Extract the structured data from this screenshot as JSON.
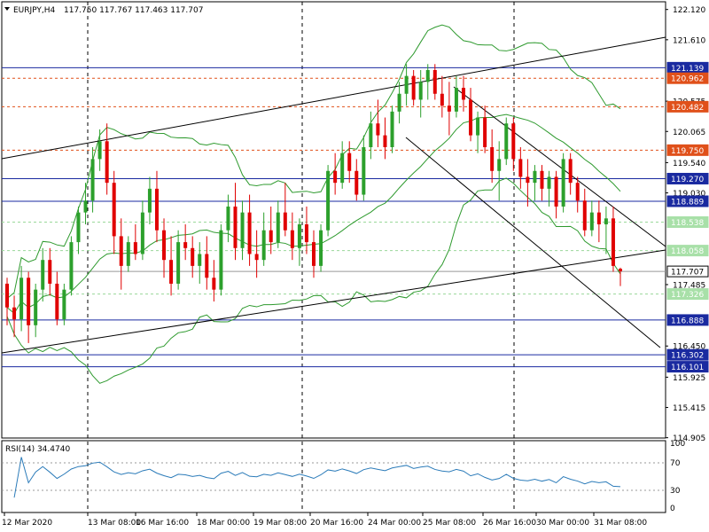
{
  "header": {
    "symbol": "EURJPY,H4",
    "ohlc": "117.750 117.767 117.463 117.707"
  },
  "rsi_panel": {
    "label": "RSI(14) 34.4740",
    "levels": [
      70,
      30
    ],
    "scale_labels": [
      "100",
      "70",
      "30",
      "0"
    ]
  },
  "colors": {
    "bull": "#2ca02c",
    "bear": "#e00000",
    "band": "#2e9a2e",
    "blue_line": "#1a2aa0",
    "orange_line": "#e0501a",
    "green_line": "#66cc66",
    "trend": "#000000"
  },
  "chart_data": {
    "type": "candlestick",
    "ylim": [
      114.9,
      122.25
    ],
    "price_scale": [
      "122.120",
      "121.610",
      "121.139",
      "120.962",
      "120.575",
      "120.482",
      "120.065",
      "119.750",
      "119.540",
      "119.270",
      "119.030",
      "118.889",
      "118.538",
      "118.058",
      "117.707",
      "117.485",
      "117.326",
      "116.888",
      "116.450",
      "116.302",
      "116.101",
      "115.925",
      "115.415",
      "114.905"
    ],
    "x_ticks": [
      "12 Mar 2020",
      "13 Mar 08:00",
      "16 Mar 16:00",
      "18 Mar 00:00",
      "19 Mar 08:00",
      "20 Mar 16:00",
      "24 Mar 00:00",
      "25 Mar 08:00",
      "26 Mar 16:00",
      "30 Mar 00:00",
      "31 Mar 08:00"
    ],
    "horizontal_levels": [
      {
        "value": 121.139,
        "label": "121.139",
        "kind": "blue"
      },
      {
        "value": 120.962,
        "label": "120.962",
        "kind": "orange"
      },
      {
        "value": 120.482,
        "label": "120.482",
        "kind": "orange"
      },
      {
        "value": 119.75,
        "label": "119.750",
        "kind": "orange"
      },
      {
        "value": 119.27,
        "label": "119.270",
        "kind": "blue"
      },
      {
        "value": 118.889,
        "label": "118.889",
        "kind": "blue"
      },
      {
        "value": 118.538,
        "label": "118.538",
        "kind": "green"
      },
      {
        "value": 118.058,
        "label": "118.058",
        "kind": "green"
      },
      {
        "value": 117.707,
        "label": "117.707",
        "kind": "current"
      },
      {
        "value": 117.326,
        "label": "117.326",
        "kind": "green"
      },
      {
        "value": 116.888,
        "label": "116.888",
        "kind": "blue"
      },
      {
        "value": 116.302,
        "label": "116.302",
        "kind": "blue"
      },
      {
        "value": 116.101,
        "label": "116.101",
        "kind": "blue"
      }
    ],
    "candles": [
      [
        117.5,
        117.6,
        116.8,
        117.1
      ],
      [
        117.1,
        117.3,
        116.6,
        116.9
      ],
      [
        116.9,
        117.8,
        116.7,
        117.6
      ],
      [
        117.6,
        117.7,
        116.5,
        116.8
      ],
      [
        116.8,
        117.5,
        116.6,
        117.4
      ],
      [
        117.4,
        118.1,
        117.2,
        117.9
      ],
      [
        117.9,
        118.1,
        117.3,
        117.5
      ],
      [
        117.5,
        117.7,
        116.8,
        116.9
      ],
      [
        116.9,
        117.5,
        116.8,
        117.4
      ],
      [
        117.4,
        118.3,
        117.3,
        118.2
      ],
      [
        118.2,
        118.8,
        118.0,
        118.7
      ],
      [
        118.7,
        119.2,
        118.5,
        118.9
      ],
      [
        118.9,
        119.8,
        118.7,
        119.6
      ],
      [
        119.6,
        120.1,
        119.4,
        119.9
      ],
      [
        119.9,
        120.2,
        119.0,
        119.2
      ],
      [
        119.2,
        119.4,
        118.0,
        118.3
      ],
      [
        118.3,
        118.6,
        117.4,
        117.8
      ],
      [
        117.8,
        118.3,
        117.7,
        118.2
      ],
      [
        118.2,
        118.5,
        117.9,
        118.0
      ],
      [
        118.0,
        118.9,
        117.9,
        118.7
      ],
      [
        118.7,
        119.3,
        118.5,
        119.1
      ],
      [
        119.1,
        119.4,
        118.2,
        118.4
      ],
      [
        118.4,
        118.6,
        117.6,
        117.9
      ],
      [
        117.9,
        118.3,
        117.3,
        117.5
      ],
      [
        117.5,
        118.4,
        117.4,
        118.2
      ],
      [
        118.2,
        118.5,
        117.9,
        118.1
      ],
      [
        118.1,
        118.3,
        117.6,
        117.8
      ],
      [
        117.8,
        118.2,
        117.5,
        118.0
      ],
      [
        118.0,
        118.3,
        117.4,
        117.6
      ],
      [
        117.6,
        117.9,
        117.2,
        117.4
      ],
      [
        117.4,
        118.5,
        117.3,
        118.4
      ],
      [
        118.4,
        119.0,
        118.2,
        118.8
      ],
      [
        118.8,
        119.2,
        117.9,
        118.1
      ],
      [
        118.1,
        118.9,
        117.9,
        118.7
      ],
      [
        118.7,
        119.0,
        117.8,
        118.0
      ],
      [
        118.0,
        118.4,
        117.6,
        117.9
      ],
      [
        117.9,
        118.7,
        117.8,
        118.4
      ],
      [
        118.4,
        118.8,
        118.0,
        118.2
      ],
      [
        118.2,
        118.9,
        118.1,
        118.7
      ],
      [
        118.7,
        119.2,
        118.3,
        118.4
      ],
      [
        118.4,
        118.7,
        117.9,
        118.1
      ],
      [
        118.1,
        118.6,
        117.8,
        118.5
      ],
      [
        118.5,
        118.8,
        118.0,
        118.2
      ],
      [
        118.2,
        118.4,
        117.6,
        117.8
      ],
      [
        117.8,
        118.5,
        117.7,
        118.4
      ],
      [
        118.4,
        119.5,
        118.3,
        119.4
      ],
      [
        119.4,
        119.7,
        119.0,
        119.2
      ],
      [
        119.2,
        119.9,
        119.1,
        119.7
      ],
      [
        119.7,
        119.9,
        119.2,
        119.4
      ],
      [
        119.4,
        119.6,
        118.9,
        119.0
      ],
      [
        119.0,
        120.0,
        118.9,
        119.8
      ],
      [
        119.8,
        120.4,
        119.6,
        120.2
      ],
      [
        120.2,
        120.6,
        119.8,
        120.0
      ],
      [
        120.0,
        120.3,
        119.6,
        119.8
      ],
      [
        119.8,
        120.5,
        119.7,
        120.4
      ],
      [
        120.4,
        120.9,
        120.2,
        120.7
      ],
      [
        120.7,
        121.2,
        120.5,
        121.0
      ],
      [
        121.0,
        121.1,
        120.5,
        120.6
      ],
      [
        120.6,
        121.1,
        120.3,
        120.9
      ],
      [
        120.9,
        121.2,
        120.6,
        121.1
      ],
      [
        121.1,
        121.2,
        120.6,
        120.7
      ],
      [
        120.7,
        121.0,
        120.3,
        120.5
      ],
      [
        120.5,
        120.9,
        120.0,
        120.4
      ],
      [
        120.4,
        121.0,
        120.3,
        120.8
      ],
      [
        120.8,
        121.0,
        120.4,
        120.6
      ],
      [
        120.6,
        120.8,
        119.9,
        120.0
      ],
      [
        120.0,
        120.4,
        119.7,
        120.3
      ],
      [
        120.3,
        120.5,
        119.7,
        119.8
      ],
      [
        119.8,
        120.1,
        119.2,
        119.4
      ],
      [
        119.4,
        119.9,
        118.9,
        119.6
      ],
      [
        119.6,
        120.3,
        119.5,
        120.2
      ],
      [
        120.2,
        120.3,
        119.4,
        119.6
      ],
      [
        119.6,
        119.8,
        119.1,
        119.3
      ],
      [
        119.3,
        119.6,
        118.8,
        119.2
      ],
      [
        119.2,
        119.5,
        118.9,
        119.4
      ],
      [
        119.4,
        119.5,
        118.9,
        119.1
      ],
      [
        119.1,
        119.4,
        118.8,
        119.3
      ],
      [
        119.3,
        119.4,
        118.6,
        118.8
      ],
      [
        118.8,
        119.7,
        118.7,
        119.6
      ],
      [
        119.6,
        119.7,
        119.0,
        119.2
      ],
      [
        119.2,
        119.3,
        118.7,
        118.9
      ],
      [
        118.9,
        119.1,
        118.3,
        118.4
      ],
      [
        118.4,
        118.9,
        118.3,
        118.7
      ],
      [
        118.7,
        118.9,
        118.2,
        118.5
      ],
      [
        118.5,
        118.8,
        118.0,
        118.6
      ],
      [
        118.6,
        118.8,
        117.7,
        117.8
      ],
      [
        117.75,
        117.77,
        117.46,
        117.71
      ]
    ]
  }
}
